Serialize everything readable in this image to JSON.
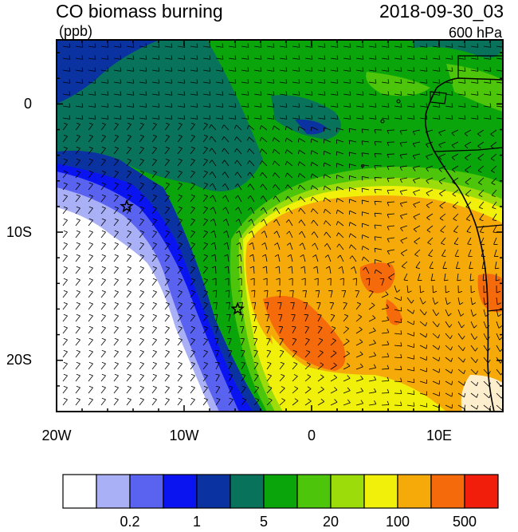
{
  "header": {
    "title": "CO biomass burning",
    "datetime": "2018-09-30_03",
    "units": "(ppb)",
    "level": "600 hPa"
  },
  "axes": {
    "x_ticks": [
      "20W",
      "10W",
      "0",
      "10E"
    ],
    "y_ticks": [
      "0",
      "10S",
      "20S"
    ],
    "lon_range": [
      -20,
      15
    ],
    "lat_range": [
      -24,
      5
    ]
  },
  "colorbar": {
    "colors": [
      "#ffffff",
      "#aab0f5",
      "#5a63f0",
      "#0a14f0",
      "#0a32a0",
      "#08735a",
      "#0aa50a",
      "#4cc50a",
      "#9bdc0a",
      "#f0f00a",
      "#f5aa0a",
      "#f56a0a",
      "#f01e0a"
    ],
    "labels": [
      "0.2",
      "1",
      "5",
      "20",
      "100",
      "500"
    ]
  },
  "markers": [
    {
      "name": "site-star-north",
      "lon": -14.5,
      "lat": -8
    },
    {
      "name": "site-star-south",
      "lon": -5.8,
      "lat": -16
    }
  ]
}
